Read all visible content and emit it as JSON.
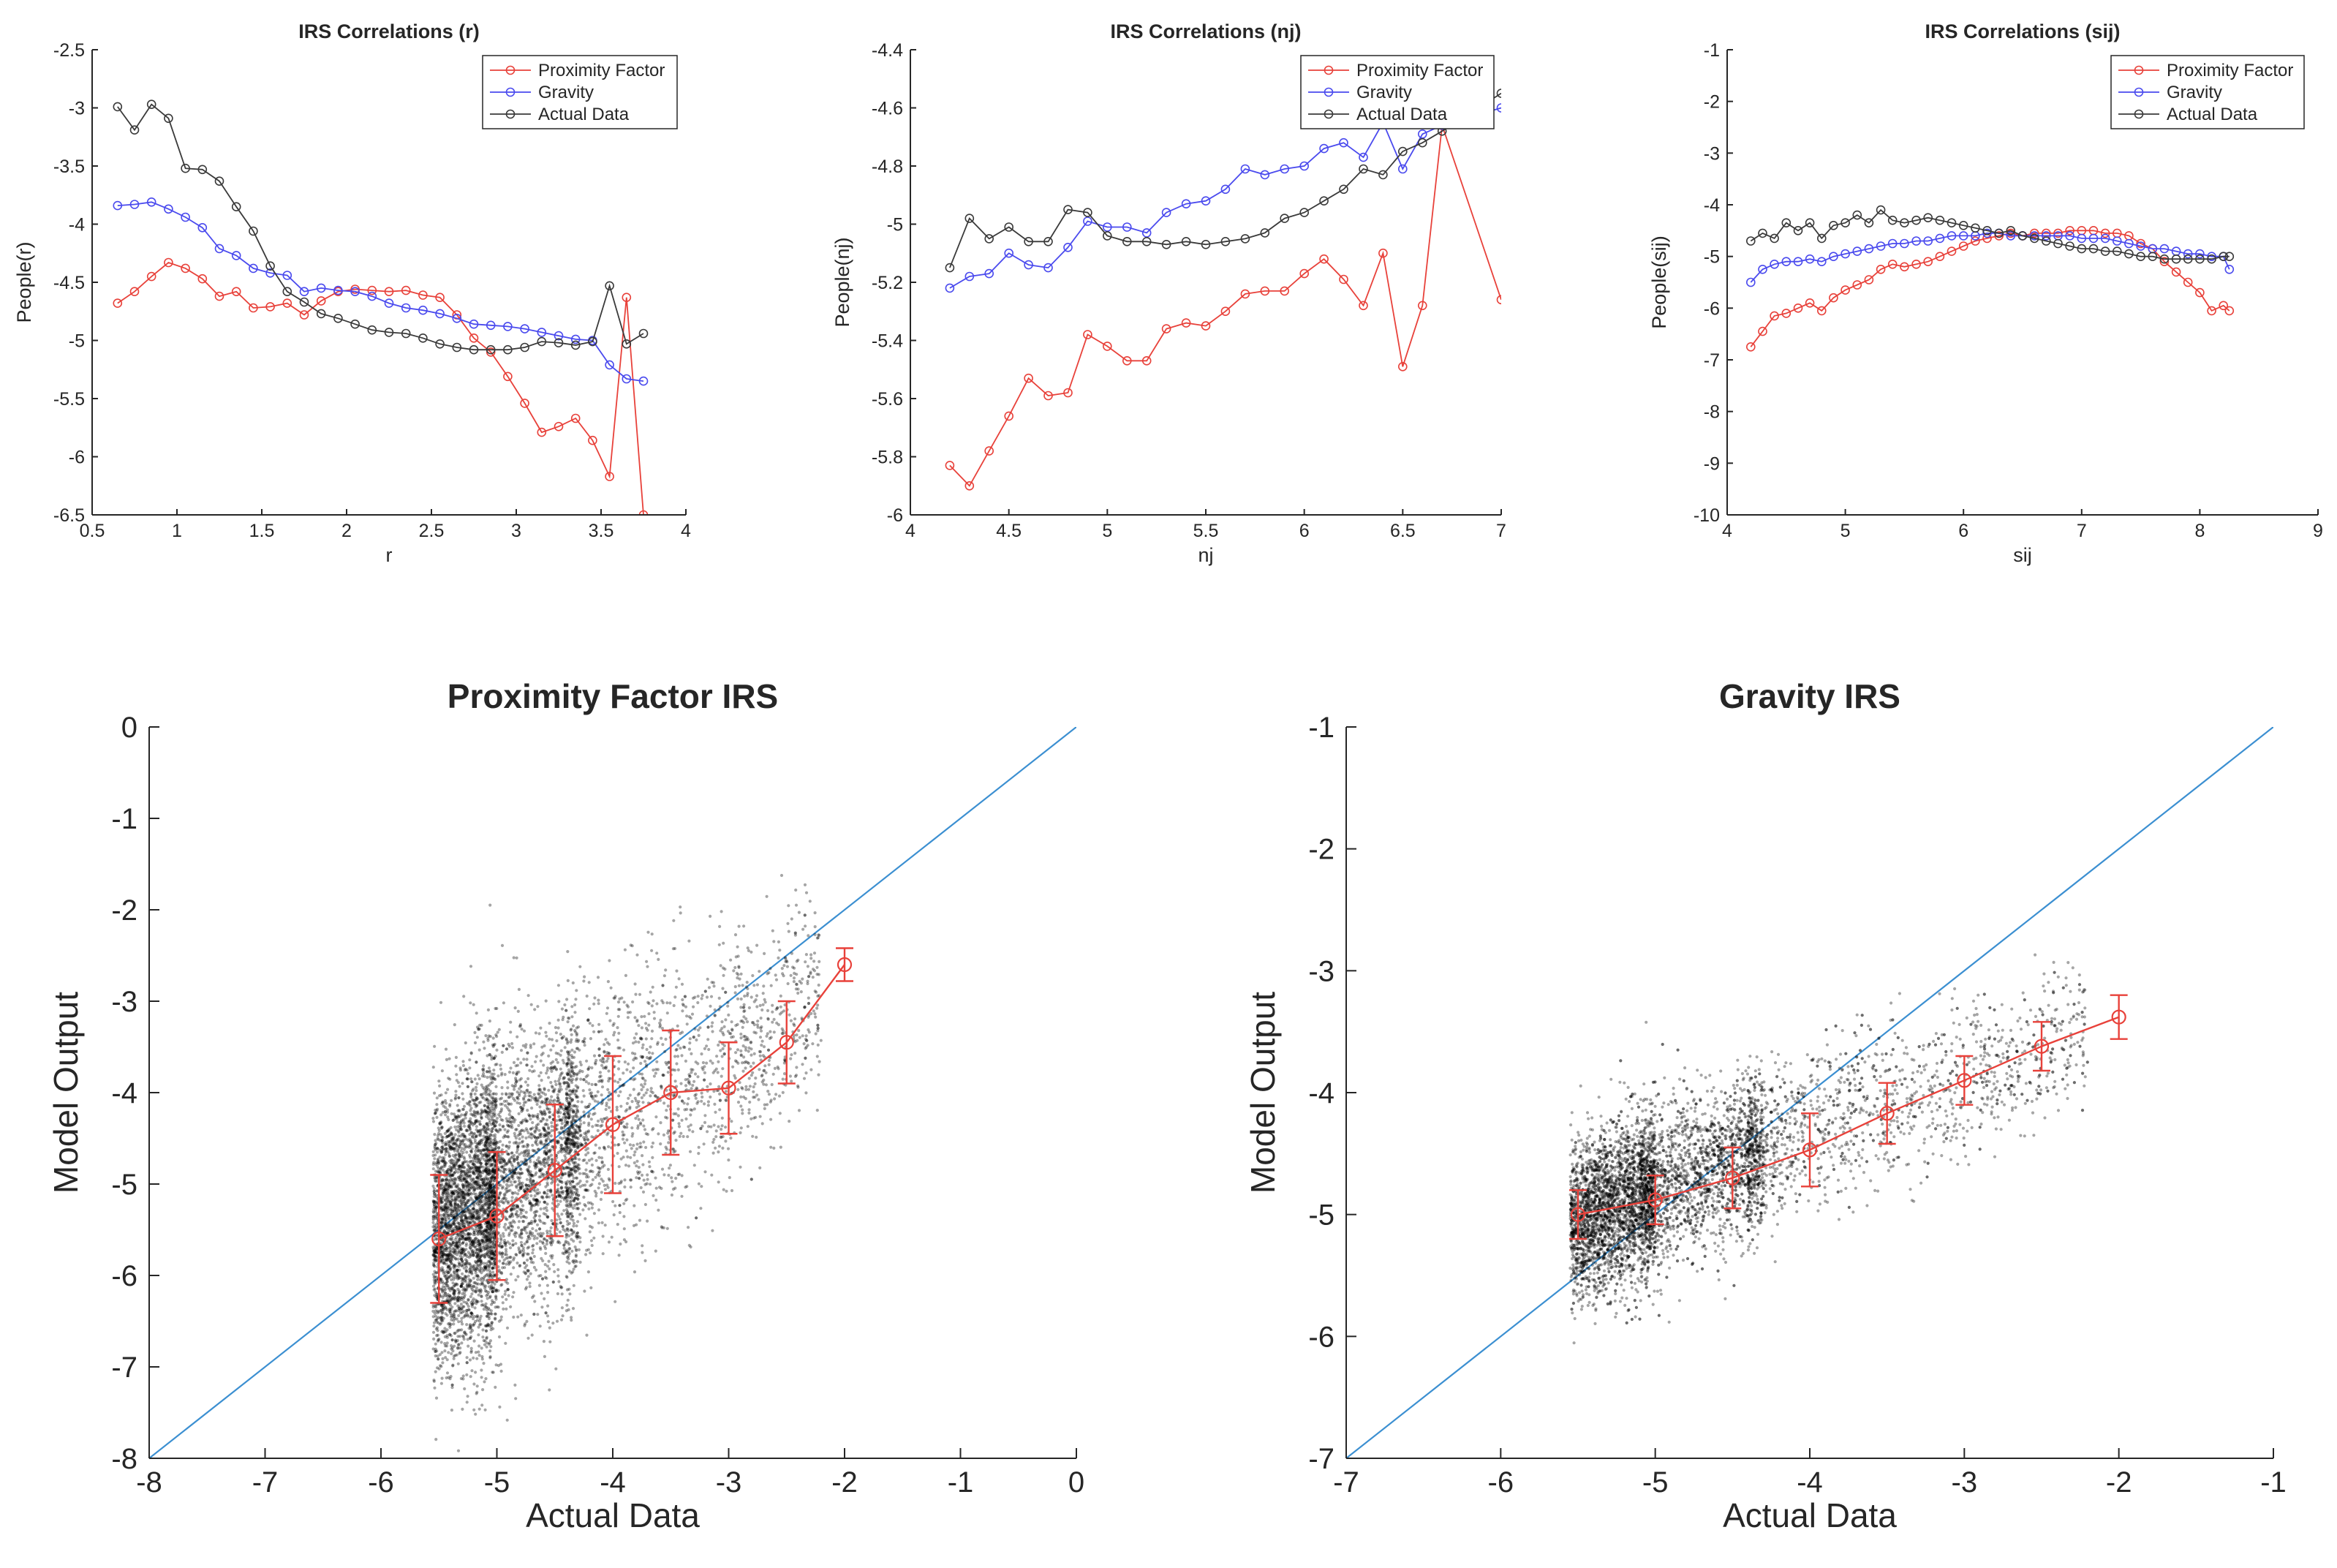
{
  "chart_data": [
    {
      "id": "r",
      "type": "line",
      "title": "IRS Correlations (r)",
      "xlabel": "r",
      "ylabel": "People(r)",
      "xlim": [
        0.5,
        4
      ],
      "ylim": [
        -6.5,
        -2.5
      ],
      "xticks": [
        0.5,
        1,
        1.5,
        2,
        2.5,
        3,
        3.5,
        4
      ],
      "yticks": [
        -2.5,
        -3,
        -3.5,
        -4,
        -4.5,
        -5,
        -5.5,
        -6,
        -6.5
      ],
      "xtick_labels": [
        "0.5",
        "1",
        "1.5",
        "2",
        "2.5",
        "3",
        "3.5",
        "4"
      ],
      "ytick_labels": [
        "-2.5",
        "-3",
        "-3.5",
        "-4",
        "-4.5",
        "-5",
        "-5.5",
        "-6",
        "-6.5"
      ],
      "legend_position": "top-right",
      "x": [
        0.65,
        0.75,
        0.85,
        0.95,
        1.05,
        1.15,
        1.25,
        1.35,
        1.45,
        1.55,
        1.65,
        1.75,
        1.85,
        1.95,
        2.05,
        2.15,
        2.25,
        2.35,
        2.45,
        2.55,
        2.65,
        2.75,
        2.85,
        2.95,
        3.05,
        3.15,
        3.25,
        3.35,
        3.45,
        3.55,
        3.65,
        3.75
      ],
      "series": [
        {
          "name": "Proximity Factor",
          "color": "#e8413a",
          "values": [
            -4.68,
            -4.58,
            -4.45,
            -4.33,
            -4.38,
            -4.47,
            -4.62,
            -4.58,
            -4.72,
            -4.71,
            -4.68,
            -4.78,
            -4.66,
            -4.58,
            -4.56,
            -4.57,
            -4.58,
            -4.57,
            -4.61,
            -4.63,
            -4.78,
            -4.98,
            -5.1,
            -5.31,
            -5.54,
            -5.79,
            -5.74,
            -5.67,
            -5.86,
            -6.17,
            -4.63,
            -6.5
          ]
        },
        {
          "name": "Gravity",
          "color": "#4a4aee",
          "values": [
            -3.84,
            -3.83,
            -3.81,
            -3.87,
            -3.94,
            -4.03,
            -4.21,
            -4.27,
            -4.38,
            -4.42,
            -4.44,
            -4.58,
            -4.55,
            -4.57,
            -4.58,
            -4.62,
            -4.68,
            -4.72,
            -4.74,
            -4.77,
            -4.81,
            -4.86,
            -4.87,
            -4.88,
            -4.9,
            -4.93,
            -4.96,
            -4.99,
            -5.0,
            -5.21,
            -5.33,
            -5.35
          ]
        },
        {
          "name": "Actual Data",
          "color": "#3a3a3a",
          "values": [
            -2.99,
            -3.19,
            -2.97,
            -3.09,
            -3.52,
            -3.53,
            -3.63,
            -3.85,
            -4.06,
            -4.36,
            -4.58,
            -4.67,
            -4.77,
            -4.81,
            -4.86,
            -4.91,
            -4.93,
            -4.94,
            -4.98,
            -5.03,
            -5.06,
            -5.08,
            -5.08,
            -5.08,
            -5.06,
            -5.01,
            -5.02,
            -5.04,
            -5.01,
            -4.53,
            -5.03,
            -4.94
          ]
        }
      ]
    },
    {
      "id": "nj",
      "type": "line",
      "title": "IRS Correlations (nj)",
      "xlabel": "nj",
      "ylabel": "People(nj)",
      "xlim": [
        4,
        7
      ],
      "ylim": [
        -6,
        -4.4
      ],
      "xticks": [
        4,
        4.5,
        5,
        5.5,
        6,
        6.5,
        7
      ],
      "yticks": [
        -4.4,
        -4.6,
        -4.8,
        -5,
        -5.2,
        -5.4,
        -5.6,
        -5.8,
        -6
      ],
      "xtick_labels": [
        "4",
        "4.5",
        "5",
        "5.5",
        "6",
        "6.5",
        "7"
      ],
      "ytick_labels": [
        "-4.4",
        "-4.6",
        "-4.8",
        "-5",
        "-5.2",
        "-5.4",
        "-5.6",
        "-5.8",
        "-6"
      ],
      "legend_position": "top-right",
      "x": [
        4.2,
        4.3,
        4.4,
        4.5,
        4.6,
        4.7,
        4.8,
        4.9,
        5.0,
        5.1,
        5.2,
        5.3,
        5.4,
        5.5,
        5.6,
        5.7,
        5.8,
        5.9,
        6.0,
        6.1,
        6.2,
        6.3,
        6.4,
        6.5,
        6.6,
        6.7,
        7.0
      ],
      "series": [
        {
          "name": "Proximity Factor",
          "color": "#e8413a",
          "values": [
            -5.83,
            -5.9,
            -5.78,
            -5.66,
            -5.53,
            -5.59,
            -5.58,
            -5.38,
            -5.42,
            -5.47,
            -5.47,
            -5.36,
            -5.34,
            -5.35,
            -5.3,
            -5.24,
            -5.23,
            -5.23,
            -5.17,
            -5.12,
            -5.19,
            -5.28,
            -5.1,
            -5.49,
            -5.28,
            -4.66,
            -5.26
          ]
        },
        {
          "name": "Gravity",
          "color": "#4a4aee",
          "values": [
            -5.22,
            -5.18,
            -5.17,
            -5.1,
            -5.14,
            -5.15,
            -5.08,
            -4.99,
            -5.01,
            -5.01,
            -5.03,
            -4.96,
            -4.93,
            -4.92,
            -4.88,
            -4.81,
            -4.83,
            -4.81,
            -4.8,
            -4.74,
            -4.72,
            -4.77,
            -4.65,
            -4.81,
            -4.69,
            -4.66,
            -4.6
          ]
        },
        {
          "name": "Actual Data",
          "color": "#3a3a3a",
          "values": [
            -5.15,
            -4.98,
            -5.05,
            -5.01,
            -5.06,
            -5.06,
            -4.95,
            -4.96,
            -5.04,
            -5.06,
            -5.06,
            -5.07,
            -5.06,
            -5.07,
            -5.06,
            -5.05,
            -5.03,
            -4.98,
            -4.96,
            -4.92,
            -4.88,
            -4.81,
            -4.83,
            -4.75,
            -4.72,
            -4.68,
            -4.55
          ]
        }
      ]
    },
    {
      "id": "sij",
      "type": "line",
      "title": "IRS Correlations (sij)",
      "xlabel": "sij",
      "ylabel": "People(sij)",
      "xlim": [
        4,
        9
      ],
      "ylim": [
        -10,
        -1
      ],
      "xticks": [
        4,
        5,
        6,
        7,
        8,
        9
      ],
      "yticks": [
        -1,
        -2,
        -3,
        -4,
        -5,
        -6,
        -7,
        -8,
        -9,
        -10
      ],
      "xtick_labels": [
        "4",
        "5",
        "6",
        "7",
        "8",
        "9"
      ],
      "ytick_labels": [
        "-1",
        "-2",
        "-3",
        "-4",
        "-5",
        "-6",
        "-7",
        "-8",
        "-9",
        "-10"
      ],
      "legend_position": "top-right",
      "x": [
        4.2,
        4.3,
        4.4,
        4.5,
        4.6,
        4.7,
        4.8,
        4.9,
        5.0,
        5.1,
        5.2,
        5.3,
        5.4,
        5.5,
        5.6,
        5.7,
        5.8,
        5.9,
        6.0,
        6.1,
        6.2,
        6.3,
        6.4,
        6.5,
        6.6,
        6.7,
        6.8,
        6.9,
        7.0,
        7.1,
        7.2,
        7.3,
        7.4,
        7.5,
        7.6,
        7.7,
        7.8,
        7.9,
        8.0,
        8.1,
        8.2,
        8.25
      ],
      "series": [
        {
          "name": "Proximity Factor",
          "color": "#e8413a",
          "values": [
            -6.75,
            -6.45,
            -6.15,
            -6.1,
            -6.0,
            -5.9,
            -6.05,
            -5.8,
            -5.65,
            -5.55,
            -5.45,
            -5.25,
            -5.15,
            -5.2,
            -5.15,
            -5.1,
            -5.0,
            -4.9,
            -4.8,
            -4.7,
            -4.65,
            -4.6,
            -4.55,
            -4.6,
            -4.55,
            -4.55,
            -4.55,
            -4.5,
            -4.5,
            -4.5,
            -4.55,
            -4.55,
            -4.6,
            -4.75,
            -4.85,
            -5.1,
            -5.3,
            -5.5,
            -5.7,
            -6.05,
            -5.95,
            -6.05
          ]
        },
        {
          "name": "Gravity",
          "color": "#4a4aee",
          "values": [
            -5.5,
            -5.25,
            -5.15,
            -5.1,
            -5.1,
            -5.05,
            -5.1,
            -5.0,
            -4.95,
            -4.9,
            -4.85,
            -4.8,
            -4.75,
            -4.75,
            -4.7,
            -4.7,
            -4.65,
            -4.6,
            -4.6,
            -4.6,
            -4.55,
            -4.55,
            -4.6,
            -4.6,
            -4.6,
            -4.6,
            -4.6,
            -4.6,
            -4.65,
            -4.65,
            -4.65,
            -4.7,
            -4.75,
            -4.8,
            -4.85,
            -4.85,
            -4.9,
            -4.95,
            -4.95,
            -5.0,
            -5.0,
            -5.25
          ]
        },
        {
          "name": "Actual Data",
          "color": "#3a3a3a",
          "values": [
            -4.7,
            -4.55,
            -4.65,
            -4.35,
            -4.5,
            -4.35,
            -4.65,
            -4.4,
            -4.35,
            -4.2,
            -4.35,
            -4.1,
            -4.3,
            -4.35,
            -4.3,
            -4.25,
            -4.3,
            -4.35,
            -4.4,
            -4.45,
            -4.5,
            -4.55,
            -4.5,
            -4.6,
            -4.65,
            -4.7,
            -4.75,
            -4.8,
            -4.85,
            -4.85,
            -4.9,
            -4.9,
            -4.95,
            -5.0,
            -5.0,
            -5.05,
            -5.05,
            -5.05,
            -5.05,
            -5.05,
            -5.0,
            -5.0
          ]
        }
      ]
    },
    {
      "id": "prox",
      "type": "scatter",
      "title": "Proximity Factor IRS",
      "xlabel": "Actual Data",
      "ylabel": "Model Output",
      "xlim": [
        -8,
        0
      ],
      "ylim": [
        -8,
        0
      ],
      "xticks": [
        -8,
        -7,
        -6,
        -5,
        -4,
        -3,
        -2,
        -1,
        0
      ],
      "yticks": [
        0,
        -1,
        -2,
        -3,
        -4,
        -5,
        -6,
        -7,
        -8
      ],
      "xtick_labels": [
        "-8",
        "-7",
        "-6",
        "-5",
        "-4",
        "-3",
        "-2",
        "-1",
        "0"
      ],
      "ytick_labels": [
        "0",
        "-1",
        "-2",
        "-3",
        "-4",
        "-5",
        "-6",
        "-7",
        "-8"
      ],
      "identity_line": {
        "color": "#3b8fd1",
        "from": [
          -8,
          -8
        ],
        "to": [
          0,
          0
        ]
      },
      "scatter_cloud": {
        "color": "#000000",
        "x_range": [
          -5.6,
          -2.3
        ],
        "description_points": 60000
      },
      "binned_means": {
        "color": "#e8413a",
        "x": [
          -5.5,
          -5.0,
          -4.5,
          -4.0,
          -3.5,
          -3.0,
          -2.5,
          -2.0
        ],
        "y": [
          -5.6,
          -5.35,
          -4.85,
          -4.35,
          -4.0,
          -3.95,
          -3.45,
          -2.6
        ],
        "err": [
          0.7,
          0.7,
          0.72,
          0.75,
          0.68,
          0.5,
          0.45,
          0.18
        ]
      }
    },
    {
      "id": "grav",
      "type": "scatter",
      "title": "Gravity IRS",
      "xlabel": "Actual Data",
      "ylabel": "Model Output",
      "xlim": [
        -7,
        -1
      ],
      "ylim": [
        -7,
        -1
      ],
      "xticks": [
        -7,
        -6,
        -5,
        -4,
        -3,
        -2,
        -1
      ],
      "yticks": [
        -1,
        -2,
        -3,
        -4,
        -5,
        -6,
        -7
      ],
      "xtick_labels": [
        "-7",
        "-6",
        "-5",
        "-4",
        "-3",
        "-2",
        "-1"
      ],
      "ytick_labels": [
        "-1",
        "-2",
        "-3",
        "-4",
        "-5",
        "-6",
        "-7"
      ],
      "identity_line": {
        "color": "#3b8fd1",
        "from": [
          -7,
          -7
        ],
        "to": [
          -1,
          -1
        ]
      },
      "scatter_cloud": {
        "color": "#000000",
        "x_range": [
          -5.6,
          -2.2
        ],
        "description_points": 60000
      },
      "binned_means": {
        "color": "#e8413a",
        "x": [
          -5.5,
          -5.0,
          -4.5,
          -4.0,
          -3.5,
          -3.0,
          -2.5,
          -2.0
        ],
        "y": [
          -5.0,
          -4.88,
          -4.7,
          -4.47,
          -4.17,
          -3.9,
          -3.62,
          -3.38
        ],
        "err": [
          0.2,
          0.2,
          0.25,
          0.3,
          0.25,
          0.2,
          0.2,
          0.18
        ]
      }
    }
  ]
}
